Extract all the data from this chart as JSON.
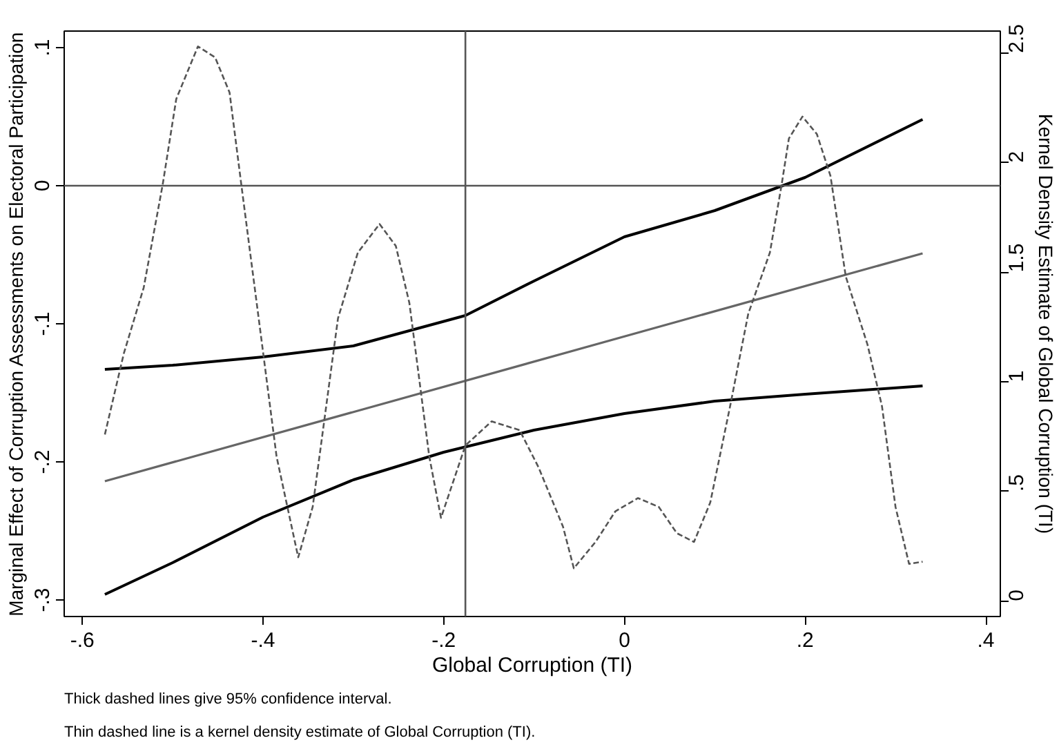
{
  "chart_data": {
    "type": "line",
    "xlabel": "Global Corruption (TI)",
    "ylabel": "Marginal Effect of Corruption Assessments on Electoral Participation",
    "y2label": "Kernel Density Estimate of Global Corruption (TI)",
    "xlim": [
      -0.62,
      0.416
    ],
    "ylim": [
      -0.312,
      0.112
    ],
    "y2lim": [
      -0.07,
      2.6
    ],
    "xticks": [
      {
        "value": -0.6,
        "label": "-.6"
      },
      {
        "value": -0.4,
        "label": "-.4"
      },
      {
        "value": -0.2,
        "label": "-.2"
      },
      0,
      {
        "value": 0.2,
        "label": ".2"
      },
      {
        "value": 0.4,
        "label": ".4"
      }
    ],
    "yticks": [
      {
        "value": -0.3,
        "label": "-.3"
      },
      {
        "value": -0.2,
        "label": "-.2"
      },
      {
        "value": -0.1,
        "label": "-.1"
      },
      0,
      {
        "value": 0.1,
        "label": ".1"
      }
    ],
    "y2ticks": [
      0,
      {
        "value": 0.5,
        "label": ".5"
      },
      1,
      1.5,
      2,
      2.5
    ],
    "grid": false,
    "marker": "none",
    "ref_lines": [
      {
        "axis": "x",
        "value": -0.176,
        "color": "#555555"
      },
      {
        "axis": "y",
        "value": 0,
        "color": "#555555"
      }
    ],
    "series": [
      {
        "color": "#000000",
        "line_style": "solid",
        "x": [
          -0.575,
          -0.5,
          -0.4,
          -0.3,
          -0.176,
          -0.1,
          0,
          0.1,
          0.2,
          0.33
        ],
        "values": [
          -0.133,
          -0.13,
          -0.124,
          -0.116,
          -0.094,
          -0.069,
          -0.037,
          -0.018,
          0.006,
          0.048
        ]
      },
      {
        "color": "#666666",
        "line_style": "solid",
        "x": [
          -0.575,
          0.33
        ],
        "values": [
          -0.214,
          -0.049
        ]
      },
      {
        "color": "#000000",
        "line_style": "solid",
        "x": [
          -0.575,
          -0.5,
          -0.4,
          -0.3,
          -0.2,
          -0.1,
          0,
          0.1,
          0.2,
          0.33
        ],
        "values": [
          -0.296,
          -0.273,
          -0.24,
          -0.213,
          -0.193,
          -0.177,
          -0.165,
          -0.156,
          -0.151,
          -0.145
        ]
      },
      {
        "color": "#555555",
        "line_style": "dashed",
        "axis": "y2",
        "x": [
          -0.575,
          -0.554,
          -0.532,
          -0.511,
          -0.496,
          -0.472,
          -0.453,
          -0.437,
          -0.424,
          -0.401,
          -0.385,
          -0.361,
          -0.345,
          -0.317,
          -0.295,
          -0.271,
          -0.253,
          -0.238,
          -0.216,
          -0.203,
          -0.176,
          -0.147,
          -0.116,
          -0.095,
          -0.068,
          -0.056,
          -0.032,
          -0.01,
          0.015,
          0.038,
          0.058,
          0.077,
          0.095,
          0.117,
          0.137,
          0.161,
          0.174,
          0.182,
          0.197,
          0.213,
          0.228,
          0.245,
          0.269,
          0.285,
          0.3,
          0.315,
          0.33
        ],
        "values": [
          0.76,
          1.13,
          1.43,
          1.9,
          2.29,
          2.53,
          2.48,
          2.32,
          1.9,
          1.17,
          0.66,
          0.2,
          0.43,
          1.29,
          1.59,
          1.72,
          1.62,
          1.36,
          0.66,
          0.38,
          0.71,
          0.82,
          0.78,
          0.61,
          0.34,
          0.15,
          0.27,
          0.41,
          0.47,
          0.43,
          0.31,
          0.27,
          0.45,
          0.89,
          1.31,
          1.59,
          1.9,
          2.11,
          2.21,
          2.13,
          1.94,
          1.48,
          1.17,
          0.89,
          0.43,
          0.17,
          0.18
        ]
      }
    ],
    "annotations": [
      "Thick dashed lines give 95% confidence interval.",
      "Thin dashed line is a kernel density estimate of Global Corruption (TI)."
    ]
  }
}
